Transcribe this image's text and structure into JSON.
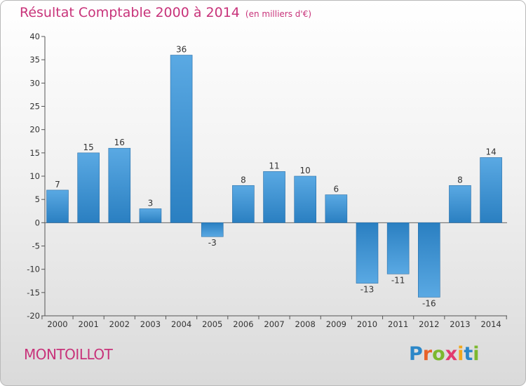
{
  "chart_data": {
    "type": "bar",
    "title": "Résultat Comptable 2000 à 2014",
    "unit": "(en milliers d'€)",
    "categories": [
      "2000",
      "2001",
      "2002",
      "2003",
      "2004",
      "2005",
      "2006",
      "2007",
      "2008",
      "2009",
      "2010",
      "2011",
      "2012",
      "2013",
      "2014"
    ],
    "values": [
      7,
      15,
      16,
      3,
      36,
      -3,
      8,
      11,
      10,
      6,
      -13,
      -11,
      -16,
      8,
      14
    ],
    "value_labels": [
      "7",
      "15",
      "16",
      "3",
      "36",
      "-3",
      "8",
      "11",
      "10",
      "6",
      "-13",
      "-11",
      "-16",
      "8",
      "14"
    ],
    "ylim": [
      -20,
      40
    ],
    "yticks": [
      40,
      35,
      30,
      25,
      20,
      15,
      10,
      5,
      0,
      -5,
      -10,
      -15,
      -20
    ],
    "ytick_labels": [
      "40",
      "35",
      "30",
      "25",
      "20",
      "15",
      "10",
      "5",
      "0",
      "-5",
      "-10",
      "-15",
      "-20"
    ],
    "xlabel": "",
    "ylabel": "",
    "grid": false,
    "bar_color_top": "#5aa9e3",
    "bar_color_bottom": "#2a7fc1"
  },
  "footer": {
    "commune": "MONTOILLOT",
    "logo_letters": [
      "P",
      "r",
      "o",
      "x",
      "i",
      "t",
      "i"
    ],
    "logo_colors": [
      "#2c87c8",
      "#e8622a",
      "#7cb82f",
      "#e23b6e",
      "#f2a81d",
      "#2c87c8",
      "#7cb82f"
    ]
  }
}
